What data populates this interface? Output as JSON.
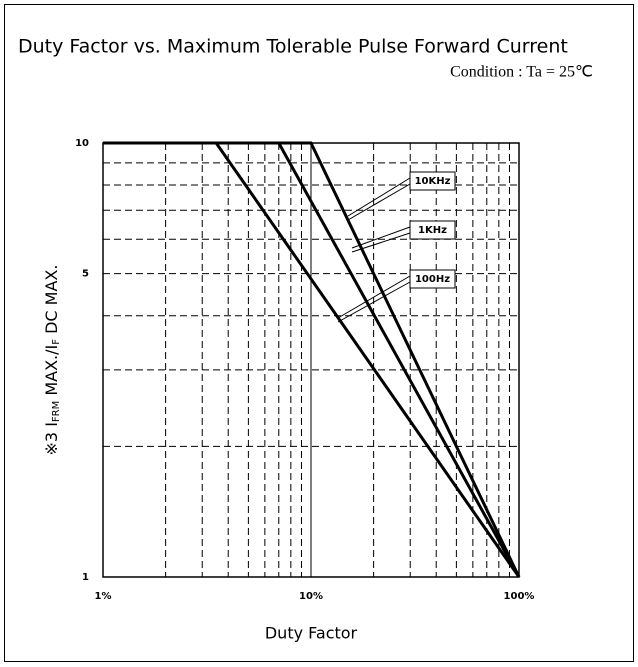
{
  "chart_data": {
    "type": "line",
    "title": "Duty Factor vs. Maximum Tolerable Pulse Forward Current",
    "subtitle": "Condition : Ta = 25℃",
    "xlabel": "Duty Factor",
    "ylabel": [
      "※3  I",
      "FRM",
      " MAX./I",
      "F",
      " DC MAX."
    ],
    "xscale": "log",
    "yscale": "log",
    "xlim": [
      1,
      100
    ],
    "ylim": [
      1,
      10
    ],
    "xticks": [
      {
        "value": 1,
        "label": "1%"
      },
      {
        "value": 10,
        "label": "10%"
      },
      {
        "value": 100,
        "label": "100%"
      }
    ],
    "yticks": [
      1,
      5,
      10
    ],
    "xminor": [
      2,
      3,
      4,
      5,
      6,
      7,
      8,
      9,
      20,
      30,
      40,
      50,
      60,
      70,
      80,
      90
    ],
    "yminor": [
      2,
      3,
      4,
      6,
      7,
      8,
      9
    ],
    "grid": true,
    "series": [
      {
        "name": "10KHz",
        "color": "#000000",
        "x": [
          1,
          10,
          100
        ],
        "values": [
          10,
          10,
          1
        ]
      },
      {
        "name": "1KHz",
        "color": "#000000",
        "x": [
          1,
          7,
          100
        ],
        "values": [
          10,
          10,
          1
        ]
      },
      {
        "name": "100Hz",
        "color": "#000000",
        "x": [
          1,
          3.5,
          100
        ],
        "values": [
          10,
          10,
          1
        ]
      }
    ]
  }
}
